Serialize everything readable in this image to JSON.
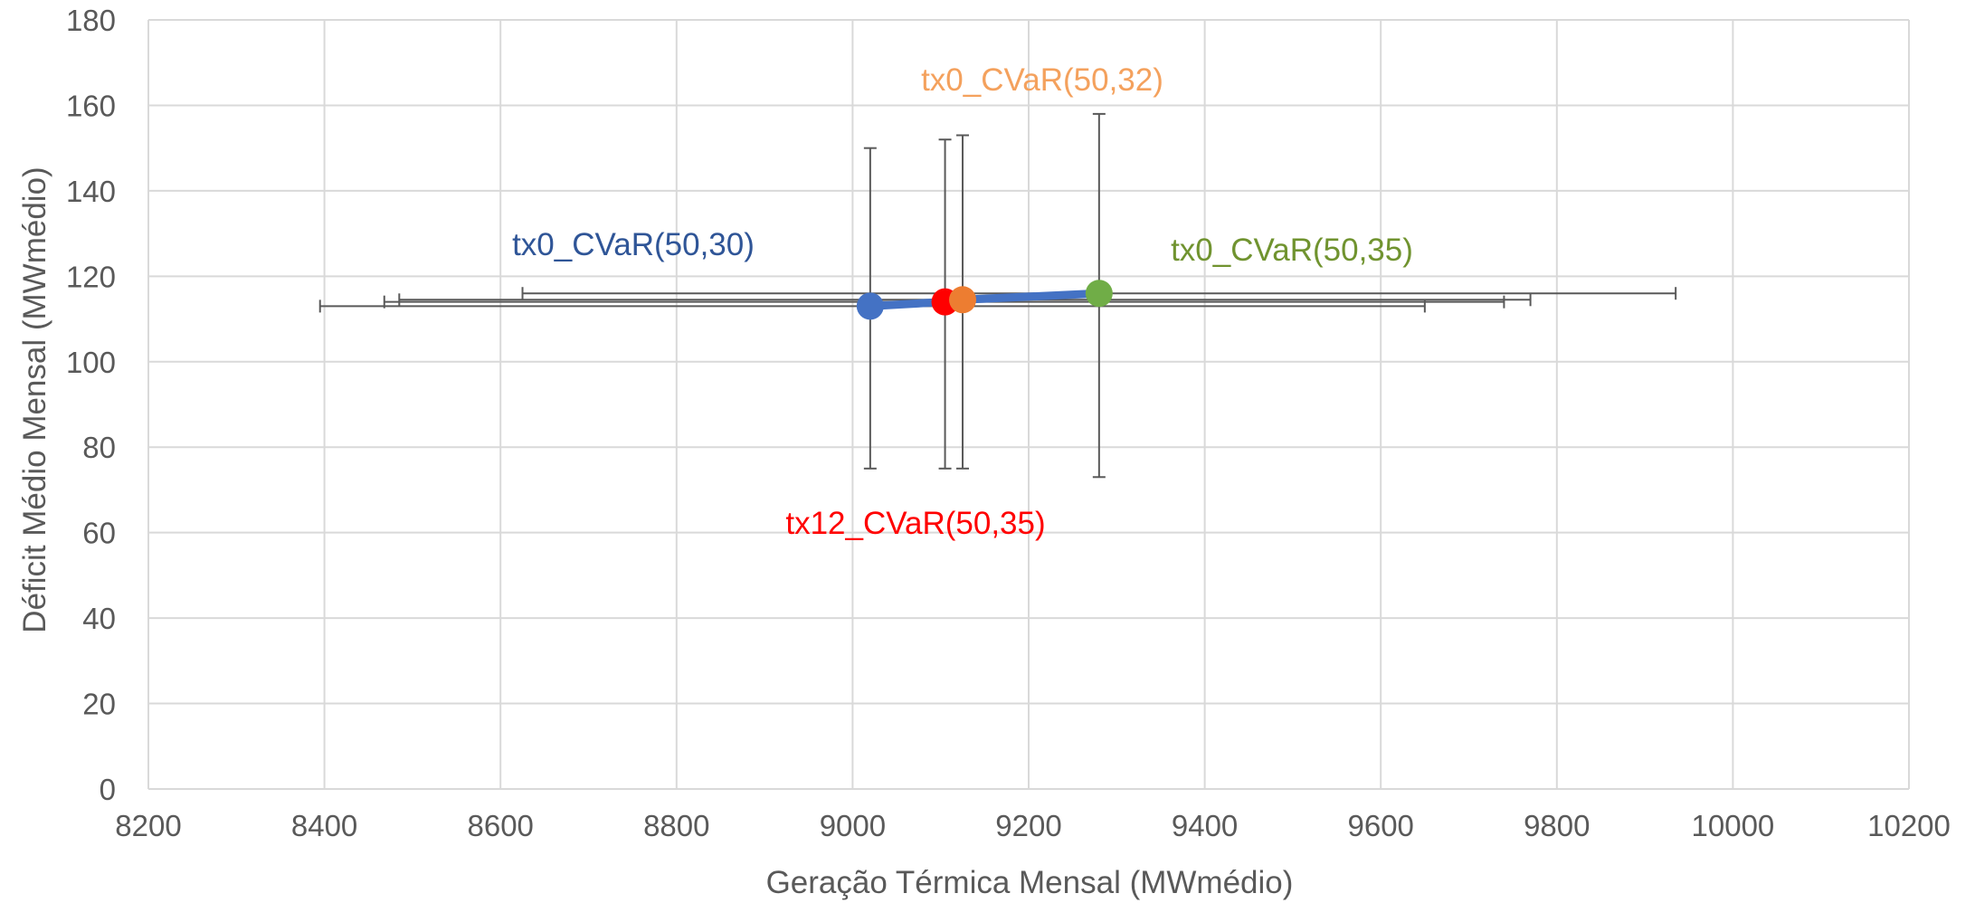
{
  "chart_data": {
    "type": "scatter",
    "xlabel": "Geração Térmica Mensal (MWmédio)",
    "ylabel": "Déficit Médio Mensal  (MWmédio)",
    "xlim": [
      8200,
      10200
    ],
    "ylim": [
      0,
      180
    ],
    "x_ticks": [
      8200,
      8400,
      8600,
      8800,
      9000,
      9200,
      9400,
      9600,
      9800,
      10000,
      10200
    ],
    "y_ticks": [
      0,
      20,
      40,
      60,
      80,
      100,
      120,
      140,
      160,
      180
    ],
    "grid": true,
    "line": {
      "color": "#4472C4",
      "points": [
        [
          9020,
          113
        ],
        [
          9105,
          114
        ],
        [
          9125,
          114.5
        ],
        [
          9280,
          116
        ]
      ]
    },
    "series": [
      {
        "label": "tx0_CVaR(50,30)",
        "color": "#4472C4",
        "label_color": "#2F5597",
        "x": 9020,
        "y": 113,
        "x_err": [
          8395,
          9650
        ],
        "y_err": [
          75,
          150
        ]
      },
      {
        "label": "tx12_CVaR(50,35)",
        "color": "#FF0000",
        "label_color": "#FF0000",
        "x": 9105,
        "y": 114,
        "x_err": [
          8468,
          9740
        ],
        "y_err": [
          75,
          152
        ]
      },
      {
        "label": "tx0_CVaR(50,32)",
        "color": "#ED7D31",
        "label_color": "#F4A15D",
        "x": 9125,
        "y": 114.5,
        "x_err": [
          8485,
          9770
        ],
        "y_err": [
          75,
          153
        ]
      },
      {
        "label": "tx0_CVaR(50,35)",
        "color": "#70AD47",
        "label_color": "#70932F",
        "x": 9280,
        "y": 116,
        "x_err": [
          8625,
          9935
        ],
        "y_err": [
          73,
          158
        ]
      }
    ]
  }
}
